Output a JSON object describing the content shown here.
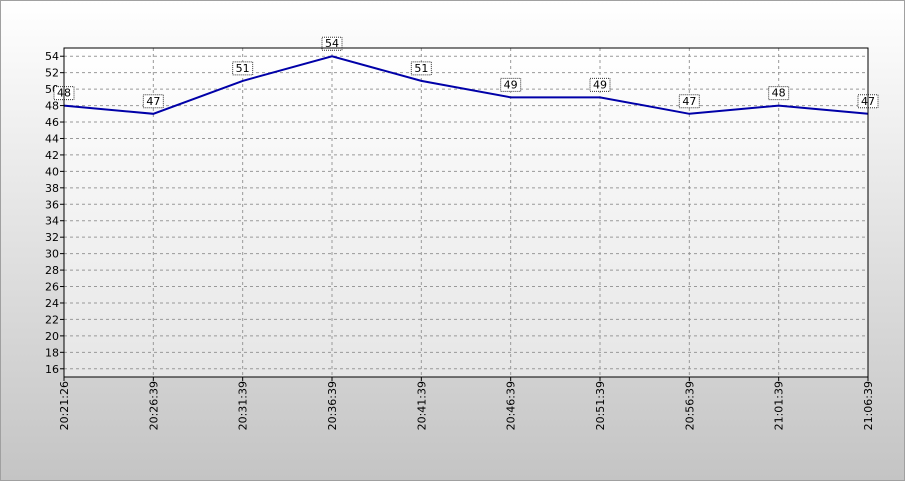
{
  "chart_data": {
    "type": "line",
    "categories": [
      "20:21:26",
      "20:26:39",
      "20:31:39",
      "20:36:39",
      "20:41:39",
      "20:46:39",
      "20:51:39",
      "20:56:39",
      "21:01:39",
      "21:06:39"
    ],
    "values": [
      48,
      47,
      51,
      54,
      51,
      49,
      49,
      47,
      48,
      47
    ],
    "color": "#0000a8",
    "ylim": [
      15,
      55
    ],
    "yticks": [
      16,
      18,
      20,
      22,
      24,
      26,
      28,
      30,
      32,
      34,
      36,
      38,
      40,
      42,
      44,
      46,
      48,
      50,
      52,
      54
    ],
    "grid": true
  }
}
